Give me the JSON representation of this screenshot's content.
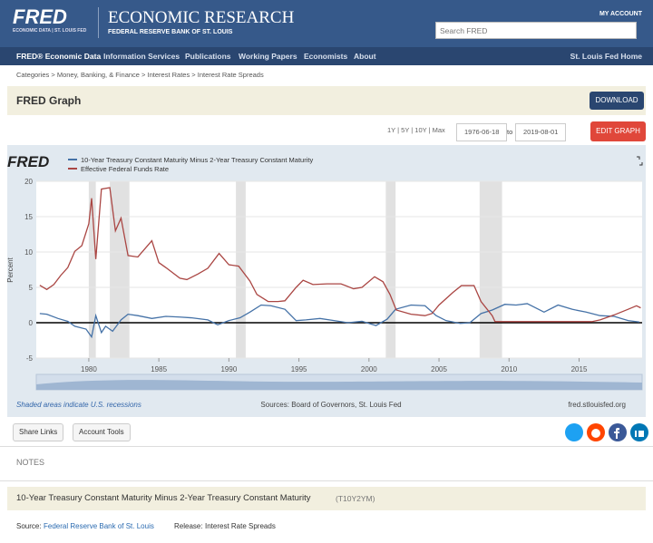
{
  "header": {
    "logo": "FRED",
    "logo_sub": "ECONOMIC DATA | ST. LOUIS FED",
    "title": "ECONOMIC RESEARCH",
    "subtitle": "FEDERAL RESERVE BANK OF ST. LOUIS",
    "account": "MY ACCOUNT",
    "search_placeholder": "Search FRED"
  },
  "nav": {
    "items": [
      "FRED® Economic Data",
      "Information Services",
      "Publications",
      "Working Papers",
      "Economists",
      "About"
    ],
    "right": "St. Louis Fed Home"
  },
  "breadcrumbs": "Categories > Money, Banking, & Finance > Interest Rates > Interest Rate Spreads",
  "graph_bar": {
    "title": "FRED Graph",
    "download": "DOWNLOAD"
  },
  "controls": {
    "ranges": "1Y | 5Y | 10Y | Max",
    "start": "1976-06-18",
    "to": "to",
    "end": "2019-08-01",
    "edit": "EDIT GRAPH"
  },
  "chart_data": {
    "type": "line",
    "logo": "FRED",
    "ylabel": "Percent",
    "xlim": [
      1976.25,
      2019.5
    ],
    "xticks": [
      1980,
      1985,
      1990,
      1995,
      2000,
      2005,
      2010,
      2015
    ],
    "ylim": [
      -5,
      20
    ],
    "yticks": [
      -5,
      0,
      5,
      10,
      15,
      20
    ],
    "grid": true,
    "recessions": [
      [
        1980.0,
        1980.5
      ],
      [
        1981.5,
        1982.9
      ],
      [
        1990.5,
        1991.2
      ],
      [
        2001.2,
        2001.9
      ],
      [
        2007.9,
        2009.5
      ]
    ],
    "series": [
      {
        "name": "10-Year Treasury Constant Maturity Minus 2-Year Treasury Constant Maturity",
        "color": "#4572a7",
        "x": [
          1976.5,
          1977,
          1977.8,
          1978.5,
          1979,
          1979.8,
          1980.2,
          1980.5,
          1980.9,
          1981.2,
          1981.7,
          1982.3,
          1982.8,
          1983.5,
          1984.5,
          1985.5,
          1986.5,
          1987.3,
          1988.5,
          1989.2,
          1990,
          1990.8,
          1991.5,
          1992.3,
          1993,
          1994,
          1994.8,
          1995.5,
          1996.5,
          1997.5,
          1998.5,
          1999.5,
          2000.5,
          2001.3,
          2001.9,
          2003,
          2004,
          2004.8,
          2005.5,
          2006.5,
          2007.2,
          2008,
          2008.8,
          2009.7,
          2010.5,
          2011.3,
          2012.5,
          2013.5,
          2014.5,
          2015.5,
          2016.5,
          2017.5,
          2018.5,
          2019.3
        ],
        "values": [
          1.3,
          1.2,
          0.6,
          0.2,
          -0.5,
          -0.9,
          -2.0,
          1.0,
          -1.4,
          -0.5,
          -1.2,
          0.4,
          1.2,
          1.0,
          0.6,
          0.9,
          0.8,
          0.7,
          0.4,
          -0.3,
          0.3,
          0.7,
          1.5,
          2.5,
          2.4,
          1.9,
          0.3,
          0.4,
          0.6,
          0.3,
          0.0,
          0.2,
          -0.4,
          0.5,
          1.9,
          2.5,
          2.4,
          1.0,
          0.3,
          -0.1,
          0.0,
          1.3,
          1.8,
          2.6,
          2.5,
          2.7,
          1.5,
          2.5,
          1.9,
          1.5,
          1.0,
          0.9,
          0.3,
          0.1
        ]
      },
      {
        "name": "Effective Federal Funds Rate",
        "color": "#aa4643",
        "x": [
          1976.5,
          1977,
          1977.5,
          1978,
          1978.5,
          1979,
          1979.5,
          1980,
          1980.2,
          1980.5,
          1980.9,
          1981.5,
          1981.9,
          1982.3,
          1982.8,
          1983.5,
          1984.5,
          1985,
          1985.5,
          1986.5,
          1987,
          1987.8,
          1988.5,
          1989.3,
          1990,
          1990.7,
          1991.5,
          1992,
          1992.8,
          1993.5,
          1994,
          1994.8,
          1995.3,
          1996,
          1997,
          1998,
          1998.9,
          1999.5,
          2000.4,
          2001,
          2001.5,
          2001.95,
          2003,
          2004,
          2004.5,
          2005,
          2006,
          2006.6,
          2007.5,
          2008,
          2008.8,
          2009,
          2015.9,
          2016.5,
          2017.5,
          2018.5,
          2019.1,
          2019.4
        ],
        "values": [
          5.3,
          4.7,
          5.4,
          6.7,
          7.8,
          10.1,
          10.9,
          14,
          17.6,
          9.0,
          18.9,
          19.1,
          13,
          14.8,
          9.5,
          9.3,
          11.6,
          8.5,
          7.8,
          6.3,
          6.1,
          6.9,
          7.7,
          9.8,
          8.2,
          8.0,
          5.9,
          4.0,
          3.0,
          3.0,
          3.1,
          5.0,
          6.0,
          5.4,
          5.5,
          5.5,
          4.8,
          5.0,
          6.5,
          5.8,
          4.0,
          1.8,
          1.2,
          1.0,
          1.3,
          2.5,
          4.3,
          5.25,
          5.25,
          3.0,
          1.0,
          0.15,
          0.15,
          0.4,
          1.1,
          1.9,
          2.4,
          2.1
        ]
      }
    ],
    "note": "Shaded areas indicate U.S. recessions",
    "source": "Sources: Board of Governors, St. Louis Fed",
    "site": "fred.stlouisfed.org"
  },
  "share": {
    "share_links": "Share Links",
    "account_tools": "Account Tools"
  },
  "notes": "NOTES",
  "series_info": {
    "title": "10-Year Treasury Constant Maturity Minus 2-Year Treasury Constant Maturity",
    "code": "(T10Y2YM)",
    "source_label": "Source:",
    "source": "Federal Reserve Bank of St. Louis",
    "release_label": "Release:",
    "release": "Interest Rate Spreads"
  }
}
